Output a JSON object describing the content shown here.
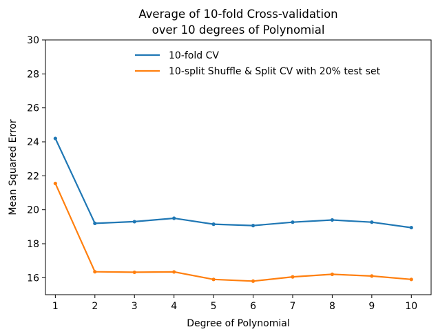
{
  "chart_data": {
    "type": "line",
    "title_line1": "Average of 10-fold Cross-validation",
    "title_line2": "over 10 degrees of Polynomial",
    "xlabel": "Degree of Polynomial",
    "ylabel": "Mean Squared Error",
    "x": [
      1,
      2,
      3,
      4,
      5,
      6,
      7,
      8,
      9,
      10
    ],
    "xlim": [
      0.75,
      10.5
    ],
    "ylim": [
      15,
      30
    ],
    "xticks": [
      1,
      2,
      3,
      4,
      5,
      6,
      7,
      8,
      9,
      10
    ],
    "yticks": [
      16,
      18,
      20,
      22,
      24,
      26,
      28,
      30
    ],
    "grid": false,
    "legend_position": "top-right",
    "series": [
      {
        "name": "10-fold CV",
        "color": "#1f77b4",
        "values": [
          24.2,
          19.2,
          19.3,
          19.5,
          19.15,
          19.07,
          19.27,
          19.4,
          19.27,
          18.95
        ]
      },
      {
        "name": "10-split Shuffle & Split CV with 20% test set",
        "color": "#ff7f0e",
        "values": [
          21.55,
          16.35,
          16.32,
          16.34,
          15.9,
          15.8,
          16.05,
          16.2,
          16.1,
          15.9
        ]
      }
    ]
  }
}
